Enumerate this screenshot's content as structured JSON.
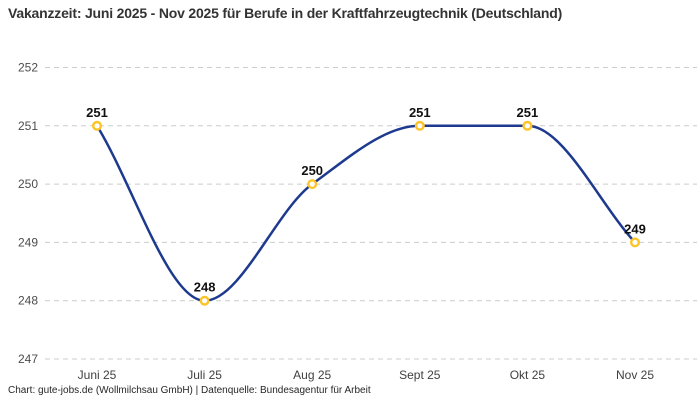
{
  "chart_data": {
    "type": "line",
    "title": "Vakanzzeit: Juni 2025 - Nov 2025 für Berufe in der Kraftfahrzeugtechnik (Deutschland)",
    "source_line": "Chart: gute-jobs.de (Wollmilchsau GmbH) | Datenquelle: Bundesagentur für Arbeit",
    "categories": [
      "Juni 25",
      "Juli 25",
      "Aug 25",
      "Sept 25",
      "Okt 25",
      "Nov 25"
    ],
    "values": [
      251,
      248,
      250,
      251,
      251,
      249
    ],
    "xlabel": "",
    "ylabel": "",
    "ylim": [
      247,
      252
    ],
    "yticks": [
      252,
      251,
      250,
      249,
      248,
      247
    ],
    "grid": "horizontal-dashed",
    "legend": "none",
    "data_labels": true,
    "colors": {
      "line": "#1d3a8f",
      "marker_ring": "#fdc428",
      "marker_fill": "#ffffff",
      "gridline": "#cccccc",
      "title_text": "#333333",
      "tick_text": "#4d4d4d"
    }
  }
}
